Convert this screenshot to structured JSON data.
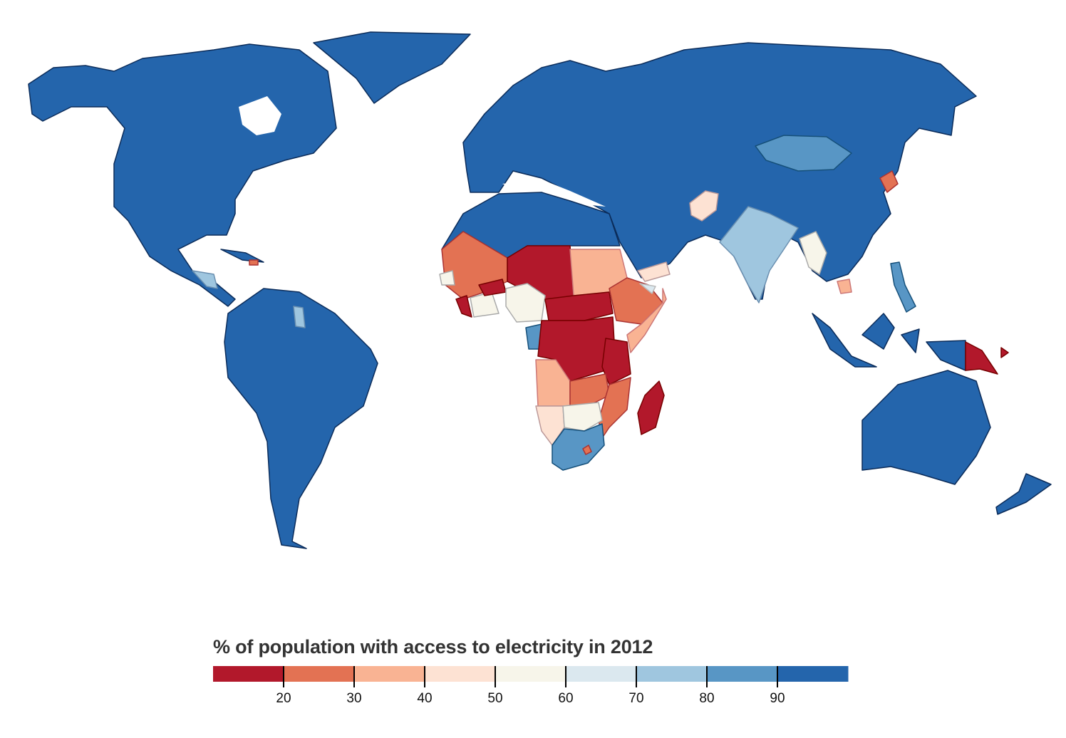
{
  "legend": {
    "title": "% of population with access to electricity in 2012",
    "domain": [
      10,
      100
    ],
    "ticks": [
      "20",
      "30",
      "40",
      "50",
      "60",
      "70",
      "80",
      "90"
    ],
    "tick_values": [
      20,
      30,
      40,
      50,
      60,
      70,
      80,
      90
    ],
    "bins": [
      {
        "from": 10,
        "to": 20,
        "color": "#b2182b"
      },
      {
        "from": 20,
        "to": 30,
        "color": "#e37253"
      },
      {
        "from": 30,
        "to": 40,
        "color": "#f9b393"
      },
      {
        "from": 40,
        "to": 50,
        "color": "#fde2d3"
      },
      {
        "from": 50,
        "to": 60,
        "color": "#f7f5ea"
      },
      {
        "from": 60,
        "to": 70,
        "color": "#dbe8ef"
      },
      {
        "from": 70,
        "to": 80,
        "color": "#9fc6df"
      },
      {
        "from": 80,
        "to": 90,
        "color": "#5896c5"
      },
      {
        "from": 90,
        "to": 100,
        "color": "#2465ac"
      }
    ]
  }
}
